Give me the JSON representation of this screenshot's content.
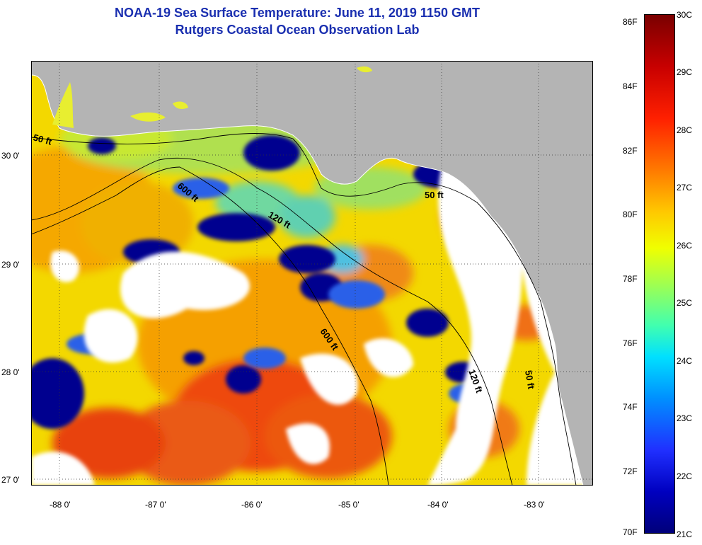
{
  "title_line1": "NOAA-19 Sea Surface Temperature:  June 11, 2019 1150 GMT",
  "title_line2": "Rutgers Coastal Ocean Observation Lab",
  "lat_labels": [
    "30 0'",
    "29 0'",
    "28 0'",
    "27 0'"
  ],
  "lon_labels": [
    "-88 0'",
    "-87 0'",
    "-86 0'",
    "-85 0'",
    "-84 0'",
    "-83 0'"
  ],
  "contours": {
    "c50a": "50 ft",
    "c600a": "600 ft",
    "c120a": "120 ft",
    "c50b": "50 ft",
    "c600b": "600 ft",
    "c120b": "120 ft",
    "c50c": "50 ft"
  },
  "colorbar": {
    "f_labels": [
      "86F",
      "84F",
      "82F",
      "80F",
      "78F",
      "76F",
      "74F",
      "72F",
      "70F"
    ],
    "c_labels": [
      "30C",
      "29C",
      "28C",
      "27C",
      "26C",
      "25C",
      "24C",
      "23C",
      "22C",
      "21C"
    ]
  },
  "colors": {
    "title": "#1a2fb0",
    "land": "#b4b4b4",
    "cloud": "#ffffff",
    "cold": "#00008f",
    "warm": "#e8320a"
  }
}
